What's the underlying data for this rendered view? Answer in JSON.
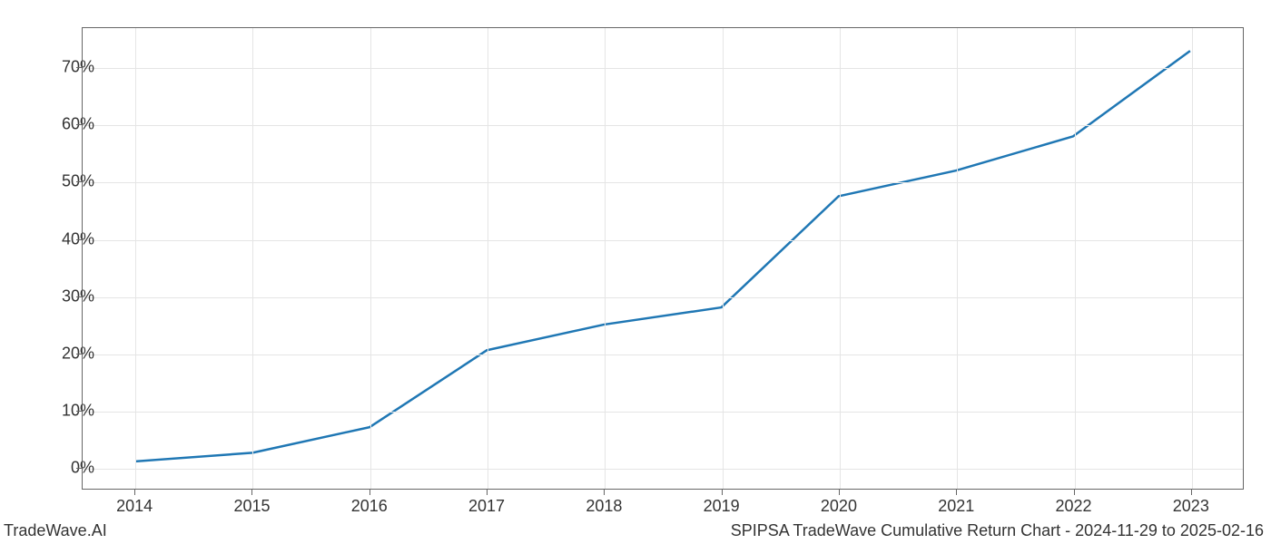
{
  "chart": {
    "type": "line",
    "x_values": [
      2014,
      2015,
      2016,
      2017,
      2018,
      2019,
      2020,
      2021,
      2022,
      2023
    ],
    "y_values": [
      1,
      2.5,
      7,
      20.5,
      25,
      28,
      47.5,
      52,
      58,
      73
    ],
    "x_labels": [
      "2014",
      "2015",
      "2016",
      "2017",
      "2018",
      "2019",
      "2020",
      "2021",
      "2022",
      "2023"
    ],
    "y_labels": [
      "0%",
      "10%",
      "20%",
      "30%",
      "40%",
      "50%",
      "60%",
      "70%"
    ],
    "y_tick_values": [
      0,
      10,
      20,
      30,
      40,
      50,
      60,
      70
    ],
    "xlim": [
      2013.55,
      2023.45
    ],
    "ylim": [
      -3.8,
      77
    ],
    "line_color": "#1f77b4",
    "line_width": 2.5,
    "grid_color": "#e5e5e5",
    "border_color": "#666666",
    "background_color": "#ffffff",
    "tick_fontsize": 18,
    "tick_color": "#333333"
  },
  "footer": {
    "left": "TradeWave.AI",
    "right": "SPIPSA TradeWave Cumulative Return Chart - 2024-11-29 to 2025-02-16",
    "fontsize": 18,
    "color": "#333333"
  }
}
